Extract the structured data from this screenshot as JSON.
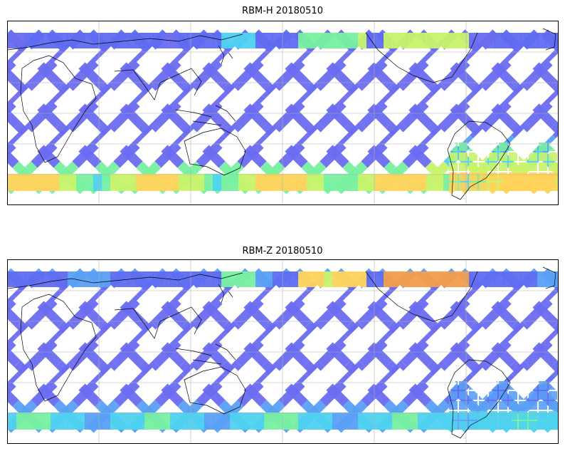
{
  "panels": [
    {
      "title": "RBM-H 20180510",
      "band_colors": [
        "#e85a4f",
        "#f39c4a",
        "#ffd35a",
        "#c8f36a",
        "#78f0a0",
        "#4fd2f0",
        "#5aa0f5",
        "#5f6cf0",
        "#5a55e6"
      ],
      "north_band_level": 0.15,
      "south_band_level": 0.75,
      "hot_region_level": 0.85
    },
    {
      "title": "RBM-Z 20180510",
      "band_colors": [
        "#e85a4f",
        "#f39c4a",
        "#ffd35a",
        "#c8f36a",
        "#78f0a0",
        "#4fd2f0",
        "#5aa0f5",
        "#5f6cf0",
        "#5a55e6"
      ],
      "north_band_level": 0.2,
      "south_band_level": 0.45,
      "hot_region_level": 0.4
    }
  ],
  "map": {
    "coastline_color": "#000000",
    "grid_color": "#b0b0b0",
    "swath_base_color": "#6a6cf0"
  }
}
